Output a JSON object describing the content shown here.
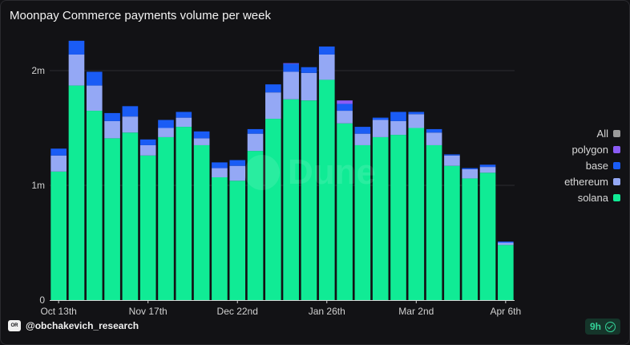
{
  "title": "Moonpay Commerce payments volume per week",
  "chart_data": {
    "type": "bar",
    "stacked": true,
    "ylim": [
      0,
      2500000
    ],
    "y_ticks": [
      {
        "value": 0,
        "label": "0"
      },
      {
        "value": 1000000,
        "label": "1m"
      },
      {
        "value": 2000000,
        "label": "2m"
      }
    ],
    "x_ticks": [
      {
        "index": 0,
        "label": "Oct 13th"
      },
      {
        "index": 5,
        "label": "Nov 17th"
      },
      {
        "index": 10,
        "label": "Dec 22nd"
      },
      {
        "index": 15,
        "label": "Jan 26th"
      },
      {
        "index": 20,
        "label": "Mar 2nd"
      },
      {
        "index": 25,
        "label": "Apr 6th"
      }
    ],
    "categories": [
      "2024-10-13",
      "2024-10-20",
      "2024-10-27",
      "2024-11-03",
      "2024-11-10",
      "2024-11-17",
      "2024-11-24",
      "2024-12-01",
      "2024-12-08",
      "2024-12-15",
      "2024-12-22",
      "2024-12-29",
      "2025-01-05",
      "2025-01-12",
      "2025-01-19",
      "2025-01-26",
      "2025-02-02",
      "2025-02-09",
      "2025-02-16",
      "2025-02-23",
      "2025-03-02",
      "2025-03-09",
      "2025-03-16",
      "2025-03-23",
      "2025-03-30",
      "2025-04-06"
    ],
    "series": [
      {
        "name": "solana",
        "color": "#10eb95",
        "values": [
          1120000,
          1870000,
          1650000,
          1410000,
          1460000,
          1260000,
          1420000,
          1510000,
          1350000,
          1070000,
          1040000,
          1300000,
          1580000,
          1750000,
          1740000,
          1920000,
          1540000,
          1350000,
          1420000,
          1440000,
          1500000,
          1350000,
          1170000,
          1060000,
          1110000,
          480000
        ]
      },
      {
        "name": "ethereum",
        "color": "#94a8f5",
        "values": [
          140000,
          270000,
          220000,
          150000,
          140000,
          90000,
          80000,
          80000,
          60000,
          80000,
          130000,
          150000,
          230000,
          240000,
          240000,
          220000,
          110000,
          100000,
          150000,
          120000,
          120000,
          110000,
          90000,
          80000,
          50000,
          20000
        ]
      },
      {
        "name": "base",
        "color": "#1a5cf5",
        "values": [
          60000,
          120000,
          120000,
          70000,
          90000,
          50000,
          70000,
          50000,
          60000,
          50000,
          50000,
          40000,
          70000,
          70000,
          50000,
          70000,
          60000,
          60000,
          20000,
          80000,
          20000,
          30000,
          10000,
          10000,
          20000,
          10000
        ]
      },
      {
        "name": "polygon",
        "color": "#8b5cf6",
        "values": [
          0,
          0,
          0,
          0,
          0,
          0,
          0,
          0,
          0,
          0,
          0,
          0,
          0,
          5000,
          0,
          0,
          30000,
          0,
          0,
          0,
          0,
          0,
          0,
          0,
          0,
          0
        ]
      }
    ],
    "legend": {
      "position": "right",
      "items": [
        {
          "name": "All",
          "color": "#9a9a9a"
        },
        {
          "name": "polygon",
          "color": "#8b5cf6"
        },
        {
          "name": "base",
          "color": "#1a5cf5"
        },
        {
          "name": "ethereum",
          "color": "#94a8f5"
        },
        {
          "name": "solana",
          "color": "#10eb95"
        }
      ]
    },
    "grid": true
  },
  "footer": {
    "author_logo_text": "OR",
    "author": "@obchakevich_research",
    "refresh_label": "9h"
  },
  "watermark": "Dune"
}
